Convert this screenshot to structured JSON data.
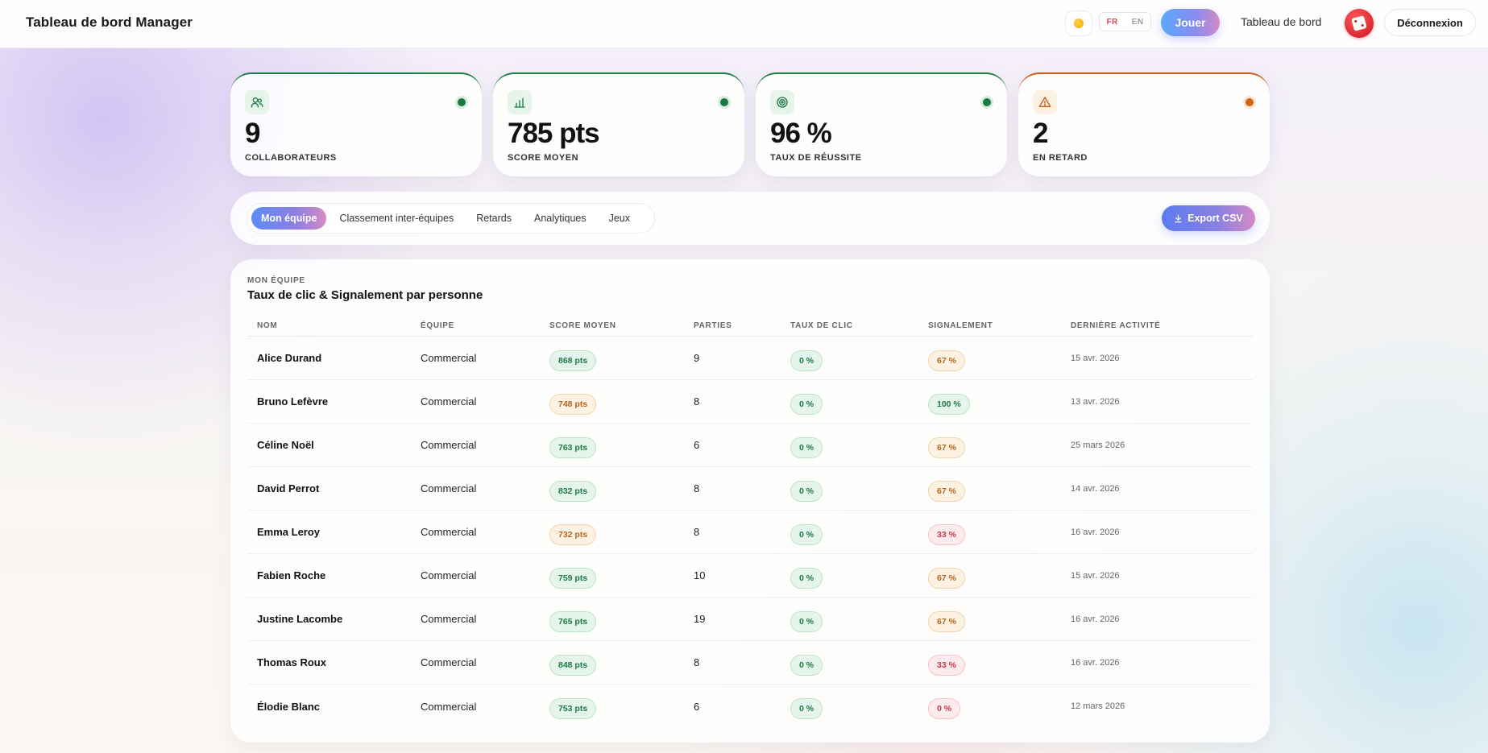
{
  "header": {
    "app_title": "Tableau de bord Manager",
    "theme_icon": "sun-icon",
    "lang_fr": "FR",
    "lang_en": "EN",
    "play_label": "Jouer",
    "nav_dashboard": "Tableau de bord",
    "avatar_icon": "dice-icon",
    "logout_label": "Déconnexion"
  },
  "stats": [
    {
      "icon": "users-icon",
      "value": "9",
      "label": "COLLABORATEURS",
      "status": "green"
    },
    {
      "icon": "bar-chart-icon",
      "value": "785 pts",
      "label": "SCORE MOYEN",
      "status": "green"
    },
    {
      "icon": "target-icon",
      "value": "96 %",
      "label": "TAUX DE RÉUSSITE",
      "status": "green"
    },
    {
      "icon": "warning-icon",
      "value": "2",
      "label": "EN RETARD",
      "status": "orange"
    }
  ],
  "tabs": [
    "Mon équipe",
    "Classement inter-équipes",
    "Retards",
    "Analytiques",
    "Jeux"
  ],
  "active_tab": "Mon équipe",
  "export_label": "Export CSV",
  "panel": {
    "kicker": "MON ÉQUIPE",
    "title": "Taux de clic & Signalement par personne"
  },
  "table": {
    "columns": [
      "NOM",
      "ÉQUIPE",
      "SCORE MOYEN",
      "PARTIES",
      "TAUX DE CLIC",
      "SIGNALEMENT",
      "DERNIÈRE ACTIVITÉ"
    ],
    "rows": [
      {
        "name": "Alice Durand",
        "team": "Commercial",
        "score": "868 pts",
        "score_color": "green",
        "games": "9",
        "click": "0 %",
        "click_color": "green",
        "report": "67 %",
        "report_color": "orange",
        "last": "15 avr. 2026"
      },
      {
        "name": "Bruno Lefèvre",
        "team": "Commercial",
        "score": "748 pts",
        "score_color": "orange",
        "games": "8",
        "click": "0 %",
        "click_color": "green",
        "report": "100 %",
        "report_color": "green",
        "last": "13 avr. 2026"
      },
      {
        "name": "Céline Noël",
        "team": "Commercial",
        "score": "763 pts",
        "score_color": "green",
        "games": "6",
        "click": "0 %",
        "click_color": "green",
        "report": "67 %",
        "report_color": "orange",
        "last": "25 mars 2026"
      },
      {
        "name": "David Perrot",
        "team": "Commercial",
        "score": "832 pts",
        "score_color": "green",
        "games": "8",
        "click": "0 %",
        "click_color": "green",
        "report": "67 %",
        "report_color": "orange",
        "last": "14 avr. 2026"
      },
      {
        "name": "Emma Leroy",
        "team": "Commercial",
        "score": "732 pts",
        "score_color": "orange",
        "games": "8",
        "click": "0 %",
        "click_color": "green",
        "report": "33 %",
        "report_color": "red",
        "last": "16 avr. 2026"
      },
      {
        "name": "Fabien Roche",
        "team": "Commercial",
        "score": "759 pts",
        "score_color": "green",
        "games": "10",
        "click": "0 %",
        "click_color": "green",
        "report": "67 %",
        "report_color": "orange",
        "last": "15 avr. 2026"
      },
      {
        "name": "Justine Lacombe",
        "team": "Commercial",
        "score": "765 pts",
        "score_color": "green",
        "games": "19",
        "click": "0 %",
        "click_color": "green",
        "report": "67 %",
        "report_color": "orange",
        "last": "16 avr. 2026"
      },
      {
        "name": "Thomas Roux",
        "team": "Commercial",
        "score": "848 pts",
        "score_color": "green",
        "games": "8",
        "click": "0 %",
        "click_color": "green",
        "report": "33 %",
        "report_color": "red",
        "last": "16 avr. 2026"
      },
      {
        "name": "Élodie Blanc",
        "team": "Commercial",
        "score": "753 pts",
        "score_color": "green",
        "games": "6",
        "click": "0 %",
        "click_color": "green",
        "report": "0 %",
        "report_color": "red",
        "last": "12 mars 2026"
      }
    ]
  },
  "colors": {
    "green": "#1c7a45",
    "orange": "#c85a14",
    "red": "#c63a48",
    "accent_from": "#5aa8ff",
    "accent_to": "#d58ac6"
  }
}
